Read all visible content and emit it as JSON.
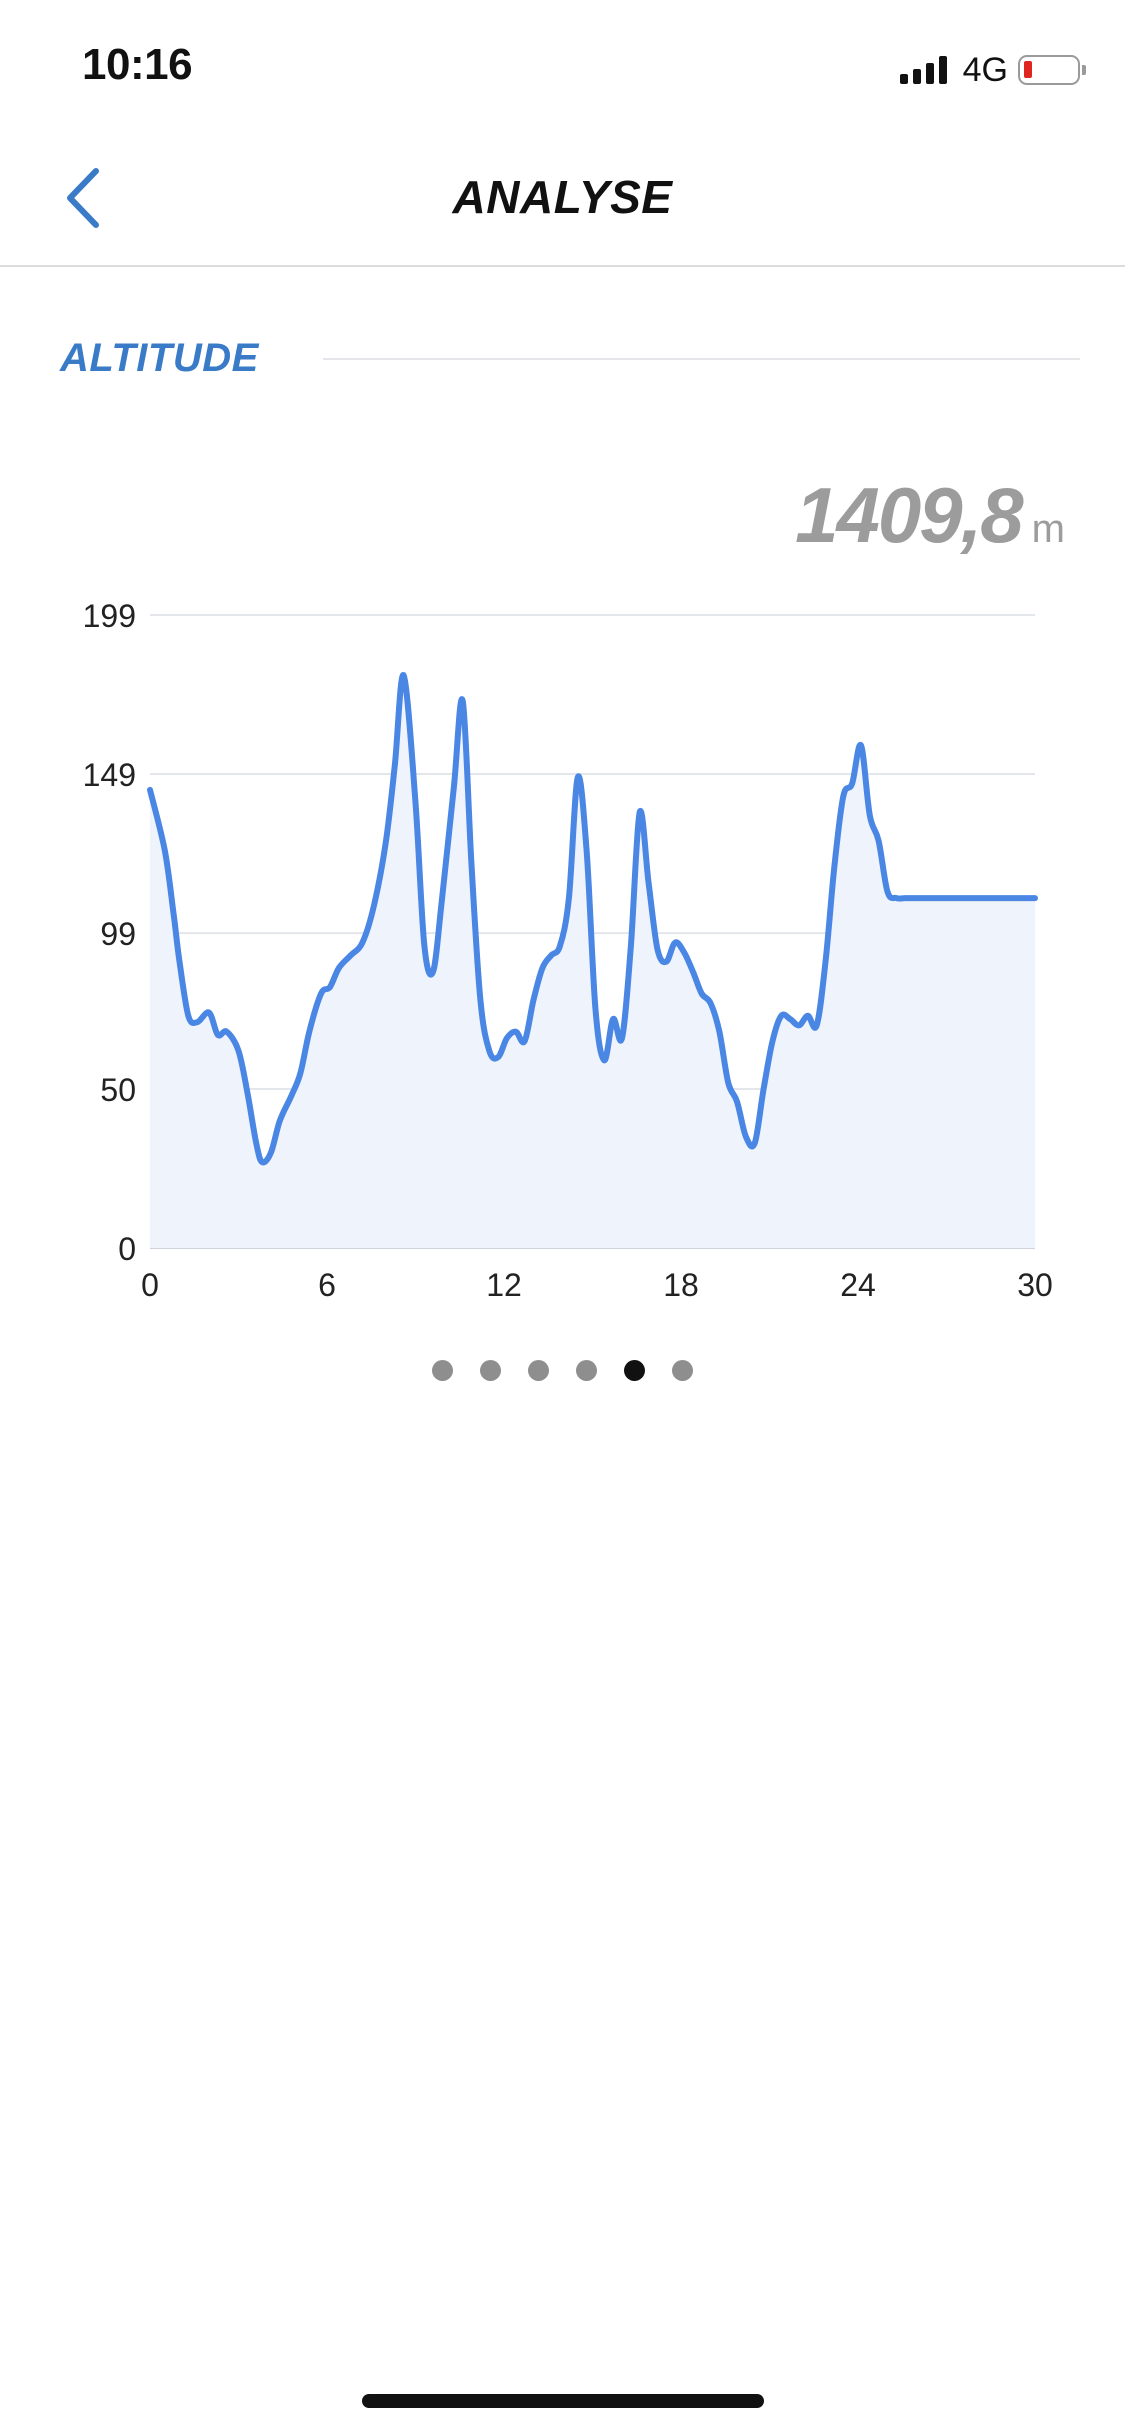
{
  "status_bar": {
    "time": "10:16",
    "network": "4G"
  },
  "nav": {
    "title": "ANALYSE",
    "back_icon": "chevron-left-icon"
  },
  "section": {
    "title": "ALTITUDE"
  },
  "summary": {
    "value": "1409,8",
    "unit": "m"
  },
  "colors": {
    "accent": "#3a7bc8",
    "line": "#4a86e4",
    "fill": "#eef3fc",
    "battery": "#e0271f"
  },
  "chart_data": {
    "type": "area",
    "title": "",
    "xlabel": "",
    "ylabel": "",
    "xlim": [
      0,
      30
    ],
    "ylim": [
      0,
      199
    ],
    "x_ticks": [
      "0",
      "6",
      "12",
      "18",
      "24",
      "30"
    ],
    "y_ticks": [
      "0",
      "50",
      "99",
      "149",
      "199"
    ],
    "grid": true,
    "x": [
      0,
      0.5,
      0.8,
      1,
      1.3,
      1.6,
      2,
      2.3,
      2.6,
      3,
      3.3,
      3.6,
      3.8,
      4.1,
      4.4,
      4.8,
      5.1,
      5.4,
      5.8,
      6.1,
      6.4,
      6.8,
      7.2,
      7.6,
      8,
      8.3,
      8.6,
      9,
      9.3,
      9.6,
      9.9,
      10.3,
      10.6,
      10.9,
      11.2,
      11.5,
      11.8,
      12.1,
      12.4,
      12.7,
      13,
      13.3,
      13.6,
      13.9,
      14.2,
      14.5,
      14.8,
      15.1,
      15.4,
      15.7,
      16,
      16.3,
      16.6,
      16.9,
      17.2,
      17.5,
      17.8,
      18.1,
      18.4,
      18.7,
      19,
      19.3,
      19.6,
      19.9,
      20.2,
      20.5,
      20.8,
      21.1,
      21.4,
      21.7,
      22,
      22.3,
      22.6,
      22.9,
      23.2,
      23.5,
      23.8,
      24.1,
      24.4,
      24.7,
      25,
      25.3,
      25.6,
      25.9,
      26.2,
      26.5,
      26.8,
      27.1,
      27.4,
      27.7,
      28,
      28.3,
      28.6,
      28.9,
      29.2,
      29.5,
      29.8,
      30
    ],
    "series": [
      {
        "values": [
          144,
          125,
          105,
          90,
          73,
          71,
          74,
          67,
          68,
          62,
          49,
          33,
          27,
          30,
          40,
          48,
          55,
          68,
          80,
          82,
          88,
          92,
          96,
          108,
          128,
          152,
          180,
          140,
          95,
          87,
          110,
          145,
          172,
          120,
          78,
          62,
          60,
          66,
          68,
          65,
          78,
          88,
          92,
          95,
          110,
          148,
          125,
          75,
          59,
          72,
          66,
          95,
          137,
          115,
          94,
          90,
          96,
          93,
          87,
          80,
          77,
          68,
          52,
          46,
          35,
          33,
          50,
          65,
          73,
          72,
          70,
          73,
          70,
          90,
          120,
          142,
          146,
          158,
          136,
          128,
          112,
          110,
          110,
          110,
          110,
          110,
          110,
          110,
          110,
          110,
          110,
          110,
          110,
          110,
          110,
          110,
          110,
          110
        ]
      }
    ]
  },
  "pager": {
    "count": 6,
    "active_index": 4
  }
}
